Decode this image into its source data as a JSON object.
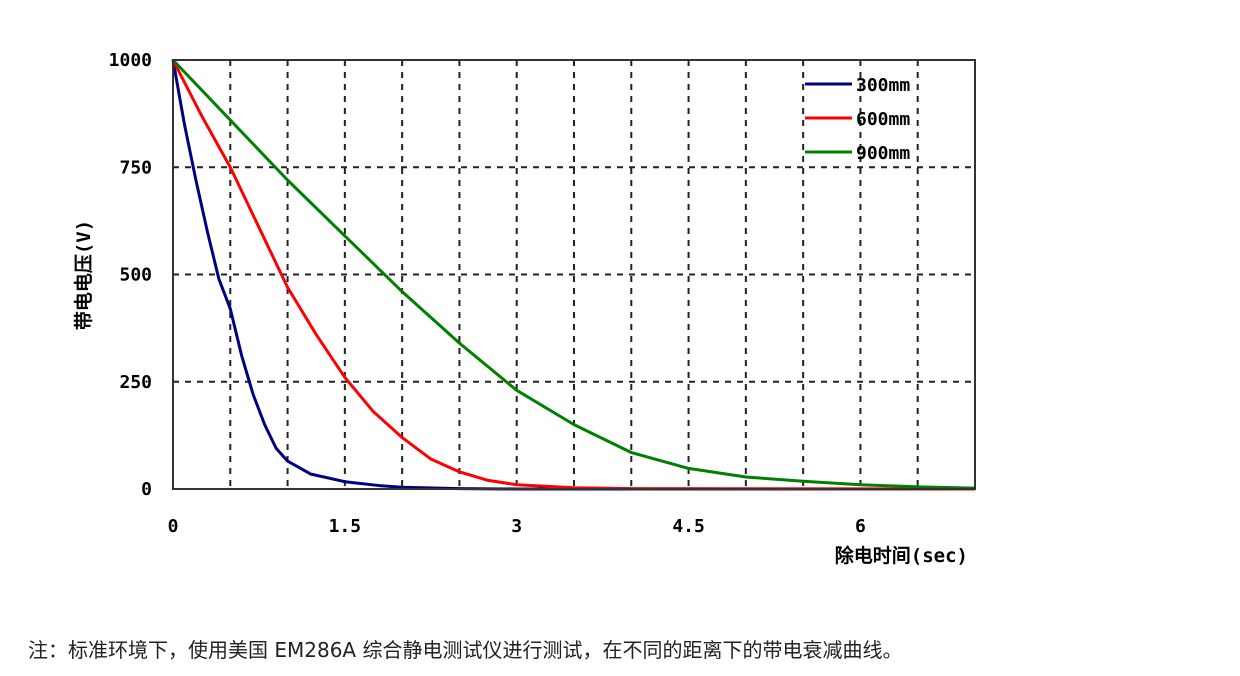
{
  "chart_data": {
    "type": "line",
    "xlabel": "除电时间(sec)",
    "ylabel": "带电电压(V)",
    "xlim": [
      0,
      7
    ],
    "ylim": [
      0,
      1000
    ],
    "xticks": [
      "0",
      "1.5",
      "3",
      "4.5",
      "6"
    ],
    "yticks": [
      "0",
      "250",
      "500",
      "750",
      "1000"
    ],
    "grid": true,
    "legend_position": "top-right",
    "series": [
      {
        "name": "300mm",
        "color": "#000080",
        "x": [
          0,
          0.1,
          0.2,
          0.3,
          0.4,
          0.5,
          0.6,
          0.7,
          0.8,
          0.9,
          1.0,
          1.2,
          1.5,
          1.8,
          2,
          2.5,
          3,
          7
        ],
        "y": [
          1000,
          850,
          720,
          600,
          490,
          420,
          310,
          220,
          150,
          95,
          65,
          35,
          17,
          8,
          4,
          1,
          0,
          0
        ]
      },
      {
        "name": "600mm",
        "color": "#ff0000",
        "x": [
          0,
          0.25,
          0.5,
          0.75,
          1,
          1.25,
          1.5,
          1.75,
          2,
          2.25,
          2.5,
          2.75,
          3,
          3.5,
          4,
          7
        ],
        "y": [
          1000,
          870,
          750,
          610,
          470,
          360,
          260,
          180,
          120,
          70,
          40,
          20,
          10,
          3,
          1,
          0
        ]
      },
      {
        "name": "900mm",
        "color": "#008000",
        "x": [
          0,
          0.5,
          1,
          1.5,
          2,
          2.5,
          3,
          3.5,
          4,
          4.5,
          5,
          5.5,
          6,
          6.5,
          7
        ],
        "y": [
          1000,
          860,
          720,
          590,
          460,
          340,
          230,
          150,
          85,
          48,
          28,
          18,
          10,
          5,
          2
        ]
      }
    ]
  },
  "note": "注：标准环境下，使用美国 EM286A 综合静电测试仪进行测试，在不同的距离下的带电衰减曲线。"
}
